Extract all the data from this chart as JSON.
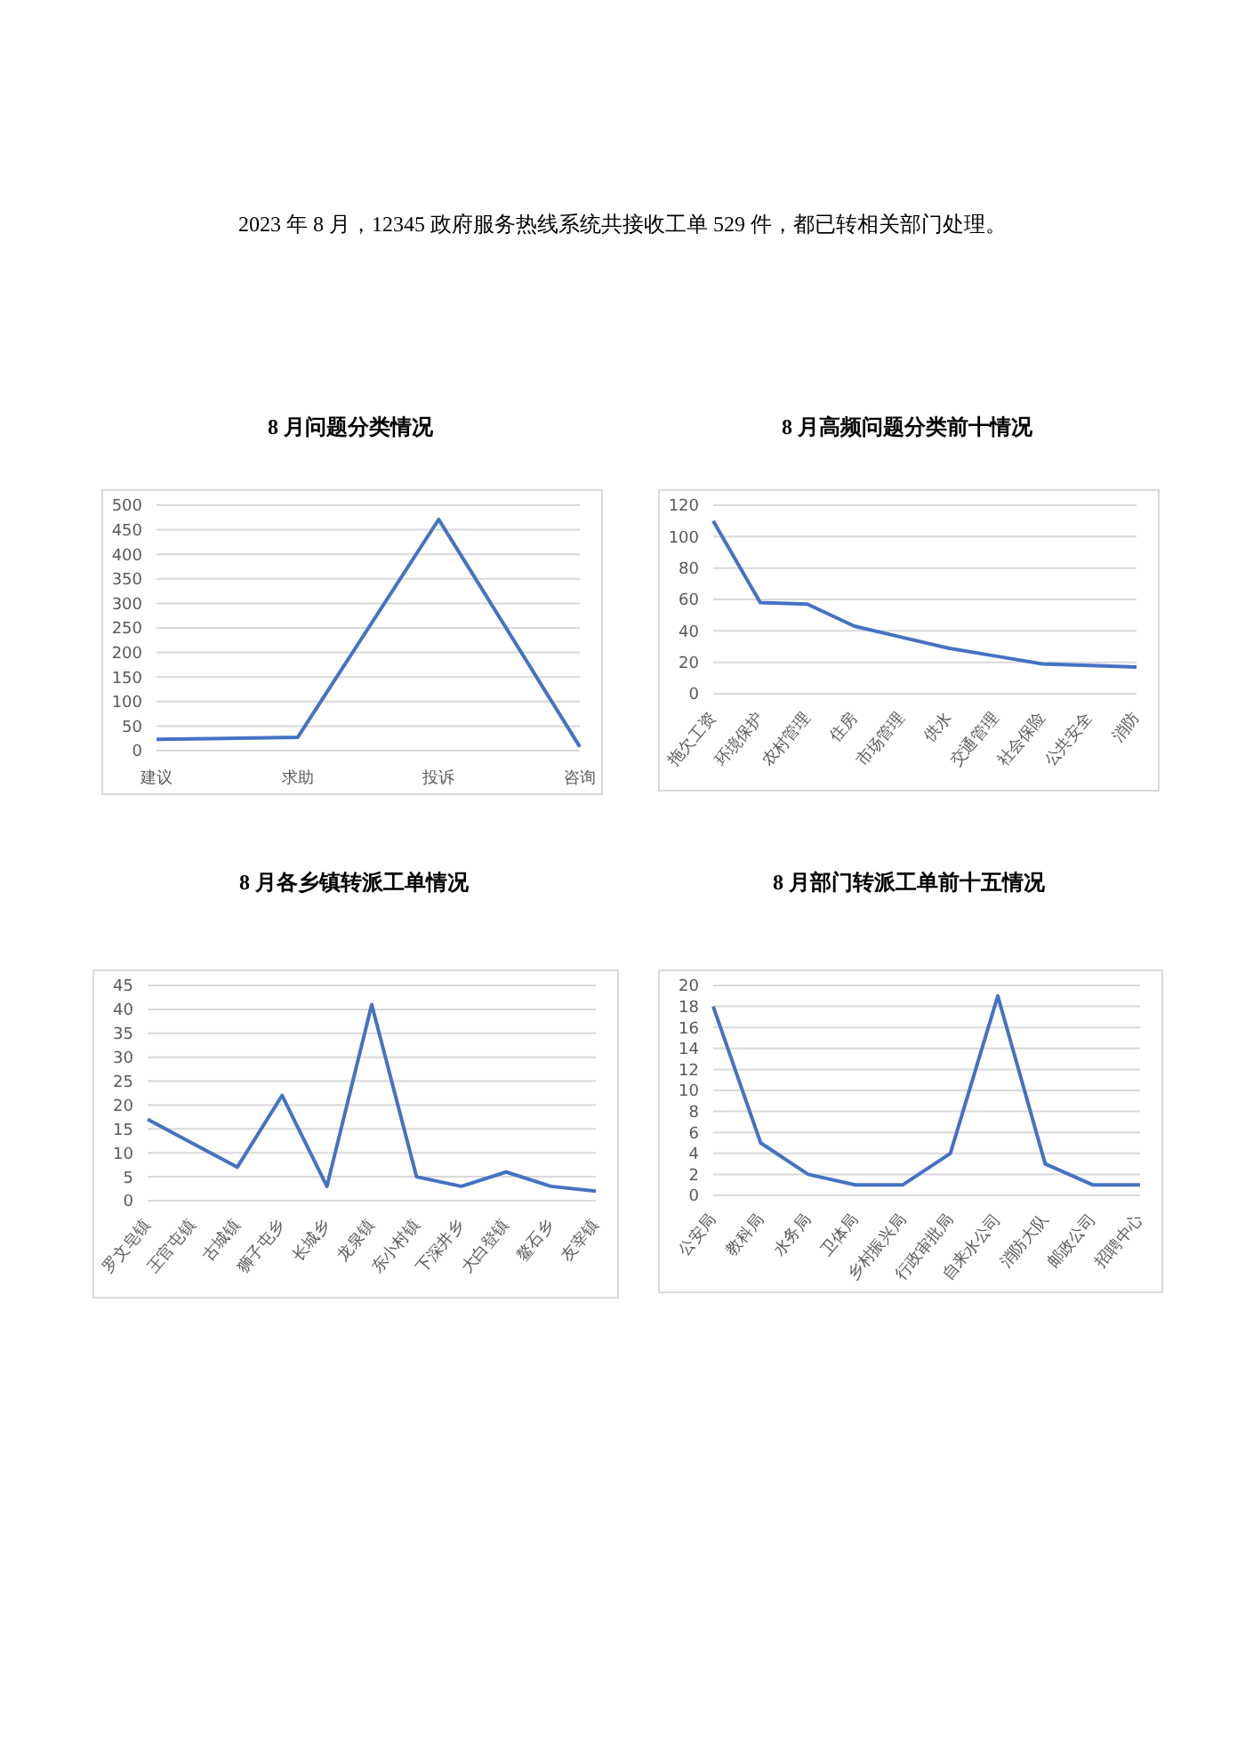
{
  "chart_data": [
    {
      "type": "other",
      "annotations": [
        "2023 年 8 月，12345 政府服务热线系统共接收工单 529 件，都已转相关部门处理。"
      ]
    },
    {
      "type": "line",
      "title": "8 月问题分类情况",
      "categories": [
        "建议",
        "求助",
        "投诉",
        "咨询"
      ],
      "values": [
        23,
        27,
        471,
        8
      ],
      "color": "#4472c4",
      "ylim": [
        0,
        500
      ],
      "yticks": [
        0,
        50,
        100,
        150,
        200,
        250,
        300,
        350,
        400,
        450,
        500
      ],
      "grid": "y"
    },
    {
      "type": "line",
      "title": "8 月高频问题分类前十情况",
      "categories": [
        "拖欠工资",
        "环境保护",
        "农村管理",
        "住房",
        "市场管理",
        "供水",
        "交通管理",
        "社会保险",
        "公共安全",
        "消防"
      ],
      "values": [
        110,
        58,
        57,
        43,
        36,
        29,
        24,
        19,
        18,
        17
      ],
      "color": "#4472c4",
      "ylim": [
        0,
        120
      ],
      "yticks": [
        0,
        20,
        40,
        60,
        80,
        100,
        120
      ],
      "grid": "y"
    },
    {
      "type": "line",
      "title": "8 月各乡镇转派工单情况",
      "categories": [
        "罗文皂镇",
        "王官屯镇",
        "古城镇",
        "狮子屯乡",
        "长城乡",
        "龙泉镇",
        "东小村镇",
        "下深井乡",
        "大白登镇",
        "鳌石乡",
        "友宰镇"
      ],
      "values": [
        17,
        12,
        7,
        22,
        3,
        41,
        5,
        3,
        6,
        3,
        2
      ],
      "color": "#4472c4",
      "ylim": [
        0,
        45
      ],
      "yticks": [
        0,
        5,
        10,
        15,
        20,
        25,
        30,
        35,
        40,
        45
      ],
      "grid": "y"
    },
    {
      "type": "line",
      "title": "8 月部门转派工单前十五情况",
      "categories": [
        "公安局",
        "教科局",
        "水务局",
        "卫体局",
        "乡村振兴局",
        "行政审批局",
        "自来水公司",
        "消防大队",
        "邮政公司",
        "招聘中心"
      ],
      "values": [
        18,
        5,
        2,
        1,
        1,
        4,
        19,
        3,
        1,
        1
      ],
      "color": "#4472c4",
      "ylim": [
        0,
        20
      ],
      "yticks": [
        0,
        2,
        4,
        6,
        8,
        10,
        12,
        14,
        16,
        18,
        20
      ],
      "grid": "y"
    }
  ]
}
